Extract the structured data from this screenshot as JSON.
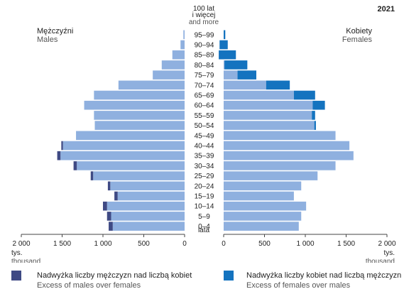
{
  "chart_data": {
    "type": "population-pyramid",
    "year": "2021",
    "title": "",
    "left_title": {
      "pl": "Mężczyźni",
      "en": "Males"
    },
    "right_title": {
      "pl": "Kobiety",
      "en": "Females"
    },
    "top_label": [
      "100 lat",
      "i więcej",
      "and more"
    ],
    "bottom_label": [
      "0–4",
      "lata"
    ],
    "x_unit": {
      "pl": "tys.",
      "en": "thousand"
    },
    "x_ticks": [
      2000,
      1500,
      1000,
      500,
      0
    ],
    "x_tick_labels": [
      "2 000",
      "1 500",
      "1 000",
      "500",
      "0"
    ],
    "xlim": [
      0,
      2000
    ],
    "age_groups": [
      "95–99",
      "90–94",
      "85–89",
      "80–84",
      "75–79",
      "70–74",
      "65–69",
      "60–64",
      "55–59",
      "50–54",
      "45–49",
      "40–44",
      "35–39",
      "30–34",
      "25–29",
      "20–24",
      "15–19",
      "10–14",
      "5–9",
      "0–4"
    ],
    "series": [
      {
        "name": "Males",
        "values": [
          15,
          50,
          150,
          280,
          390,
          810,
          1110,
          1230,
          1110,
          1100,
          1330,
          1510,
          1560,
          1360,
          1150,
          940,
          860,
          1000,
          950,
          930
        ]
      },
      {
        "name": "Females",
        "values": [
          20,
          50,
          150,
          290,
          400,
          810,
          1120,
          1240,
          1120,
          1130,
          1370,
          1540,
          1590,
          1370,
          1150,
          950,
          860,
          1010,
          950,
          920
        ]
      }
    ],
    "excess_males": [
      0,
      0,
      0,
      0,
      0,
      0,
      0,
      0,
      0,
      0,
      0,
      20,
      40,
      40,
      30,
      30,
      40,
      50,
      50,
      50
    ],
    "excess_females": [
      20,
      100,
      210,
      280,
      230,
      290,
      260,
      150,
      40,
      20,
      0,
      0,
      0,
      0,
      0,
      0,
      0,
      0,
      0,
      0
    ],
    "colors": {
      "base": "#8fb0df",
      "excess_males": "#3f4a84",
      "excess_females": "#1473bf",
      "axis": "#444444",
      "text": "#222222"
    }
  },
  "legend": {
    "males_pl": "Nadwyżka liczby mężczyzn nad liczbą kobiet",
    "males_en": "Excess of males over females",
    "females_pl": "Nadwyżka liczby kobiet nad liczbą mężczyzn",
    "females_en": "Excess of females over males"
  }
}
